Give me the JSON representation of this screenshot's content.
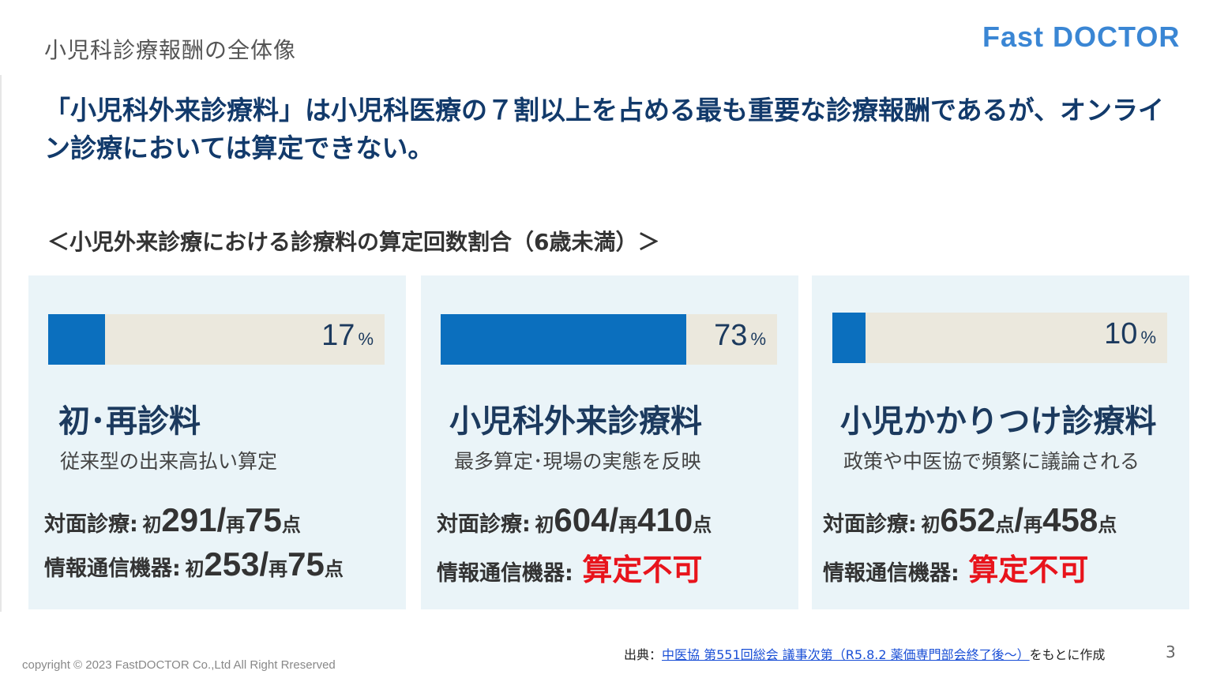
{
  "header": {
    "title": "小児科診療報酬の全体像",
    "logo": "Fast DOCTOR"
  },
  "headline": "「小児科外来診療料」は小児科医療の７割以上を占める最も重要な診療報酬であるが、オンライン診療においては算定できない。",
  "section_heading": "＜小児外来診療における診療料の算定回数割合（6歳未満）＞",
  "colors": {
    "bar": "#0b6fbe",
    "track": "#ebe8dd",
    "card_bg": "#eaf4f8",
    "headline": "#123a6b",
    "alert": "#e8141c"
  },
  "cards": [
    {
      "percent": 17,
      "percent_label": "17",
      "unit": "%",
      "title": "初･再診料",
      "subtitle": "従来型の出来高払い算定",
      "row1": {
        "label": "対面診療:",
        "first_prefix": "初",
        "first_value": "291",
        "sep": "/",
        "re_prefix": "再",
        "re_value": "75",
        "suffix": "点"
      },
      "row2": {
        "label": "情報通信機器:",
        "first_prefix": "初",
        "first_value": "253",
        "sep": "/",
        "re_prefix": "再",
        "re_value": "75",
        "suffix": "点"
      }
    },
    {
      "percent": 73,
      "percent_label": "73",
      "unit": "%",
      "title": "小児科外来診療料",
      "subtitle": "最多算定･現場の実態を反映",
      "row1": {
        "label": "対面診療:",
        "first_prefix": "初",
        "first_value": "604",
        "sep": "/",
        "re_prefix": "再",
        "re_value": "410",
        "suffix": "点"
      },
      "row2": {
        "label": "情報通信機器:",
        "status": "算定不可"
      }
    },
    {
      "percent": 10,
      "percent_label": "10",
      "unit": "%",
      "title": "小児かかりつけ診療料",
      "subtitle": "政策や中医協で頻繁に議論される",
      "row1": {
        "label": "対面診療:",
        "first_prefix": "初",
        "first_value": "652",
        "mid_suffix": "点",
        "sep": "/",
        "re_prefix": "再",
        "re_value": "458",
        "suffix": "点"
      },
      "row2": {
        "label": "情報通信機器:",
        "status": "算定不可"
      }
    }
  ],
  "footer": {
    "source_prefix": "出典：",
    "source_link": "中医協 第551回総会 議事次第（R5.8.2 薬価専門部会終了後～）",
    "source_suffix": "をもとに作成",
    "page_number": "3",
    "copyright": "copyright © 2023 FastDOCTOR Co.,Ltd All Right Rreserved"
  }
}
